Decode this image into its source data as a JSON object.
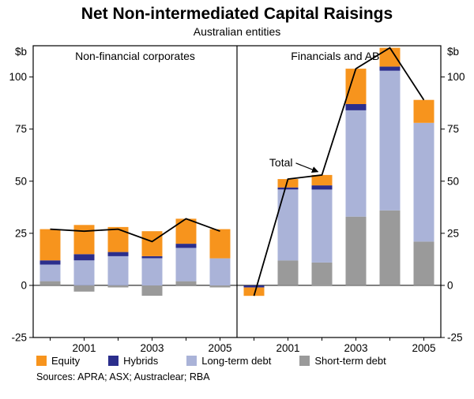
{
  "title": "Net Non-intermediated Capital Raisings",
  "subtitle": "Australian entities",
  "sources": "Sources: APRA; ASX; Austraclear; RBA",
  "axis": {
    "unit_left": "$b",
    "unit_right": "$b"
  },
  "annotation": {
    "label": "Total",
    "panel": 1,
    "year": 2002,
    "value": 53
  },
  "chart_data": {
    "type": "bar",
    "stacked": true,
    "title": "Net Non-intermediated Capital Raisings",
    "subtitle": "Australian entities",
    "ylim": [
      -25,
      115
    ],
    "yticks": [
      -25,
      0,
      25,
      50,
      75,
      100
    ],
    "unit": "$b",
    "grid": false,
    "legend_position": "bottom",
    "legend": [
      "Equity",
      "Hybrids",
      "Long-term debt",
      "Short-term debt"
    ],
    "stack_order": [
      "Short-term debt",
      "Long-term debt",
      "Hybrids",
      "Equity"
    ],
    "colors": {
      "Equity": "#F7941D",
      "Hybrids": "#2B2E8C",
      "Long-term debt": "#AAB3D8",
      "Short-term debt": "#9A9A9A",
      "total_line": "#000000"
    },
    "panels": [
      {
        "title": "Non-financial corporates",
        "years": [
          2000,
          2001,
          2002,
          2003,
          2004,
          2005
        ],
        "xticks": [
          2001,
          2003,
          2005
        ],
        "series": {
          "Equity": [
            15,
            14,
            12,
            12,
            12,
            14
          ],
          "Hybrids": [
            2,
            3,
            2,
            1,
            2,
            0
          ],
          "Long-term debt": [
            8,
            12,
            14,
            13,
            16,
            13
          ],
          "Short-term debt": [
            2,
            -3,
            -1,
            -5,
            2,
            -1
          ]
        },
        "total": [
          27,
          26,
          27,
          21,
          32,
          26
        ]
      },
      {
        "title": "Financials and ABS",
        "years": [
          2000,
          2001,
          2002,
          2003,
          2004,
          2005
        ],
        "xticks": [
          2001,
          2003,
          2005
        ],
        "series": {
          "Equity": [
            -4,
            4,
            5,
            17,
            9,
            11
          ],
          "Hybrids": [
            -1,
            1,
            2,
            3,
            2,
            0
          ],
          "Long-term debt": [
            0,
            34,
            35,
            51,
            67,
            57
          ],
          "Short-term debt": [
            0,
            12,
            11,
            33,
            36,
            21
          ]
        },
        "total": [
          -5,
          51,
          53,
          104,
          114,
          89
        ]
      }
    ]
  }
}
